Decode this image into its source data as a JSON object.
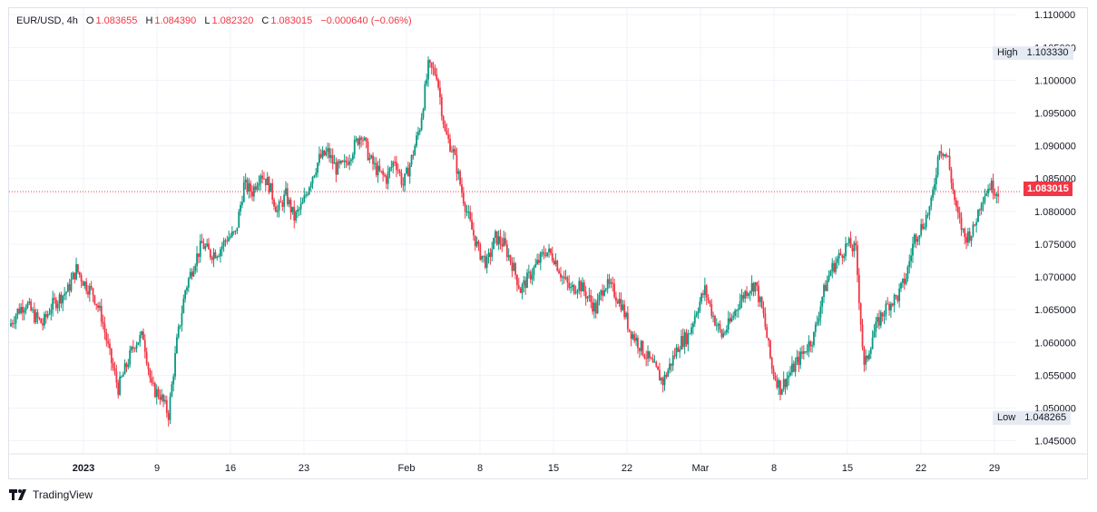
{
  "legend": {
    "symbol": "EUR/USD, 4h",
    "o_label": "O",
    "o": "1.083655",
    "h_label": "H",
    "h": "1.084390",
    "l_label": "L",
    "l": "1.082320",
    "c_label": "C",
    "c": "1.083015",
    "change": "−0.000640 (−0.06%)"
  },
  "high_tag": {
    "label": "High",
    "value": "1.103330"
  },
  "low_tag": {
    "label": "Low",
    "value": "1.048265"
  },
  "last_price": "1.083015",
  "brand": "TradingView",
  "colors": {
    "up": "#089981",
    "down": "#f23645",
    "grid": "#f0f3fa",
    "price_line": "#f23645"
  },
  "chart_data": {
    "type": "candlestick",
    "title": "EUR/USD, 4h",
    "ylim": [
      1.043,
      1.111
    ],
    "y_ticks": [
      "1.045000",
      "1.050000",
      "1.055000",
      "1.060000",
      "1.065000",
      "1.070000",
      "1.075000",
      "1.080000",
      "1.085000",
      "1.090000",
      "1.095000",
      "1.100000",
      "1.105000",
      "1.110000"
    ],
    "x_ticks": [
      "2023",
      "9",
      "16",
      "23",
      "Feb",
      "8",
      "15",
      "22",
      "Mar",
      "8",
      "15",
      "22",
      "29"
    ],
    "grid": true,
    "last_price": 1.083015,
    "series_close": [
      1.0625,
      1.0648,
      1.066,
      1.064,
      1.0628,
      1.0655,
      1.0668,
      1.068,
      1.0712,
      1.069,
      1.0675,
      1.064,
      1.058,
      1.053,
      1.0565,
      1.06,
      1.061,
      1.053,
      1.052,
      1.049,
      1.06,
      1.068,
      1.072,
      1.075,
      1.0735,
      1.074,
      1.076,
      1.0765,
      1.084,
      1.083,
      1.086,
      1.084,
      1.08,
      1.0825,
      1.079,
      1.081,
      1.085,
      1.088,
      1.089,
      1.0865,
      1.087,
      1.0895,
      1.092,
      1.088,
      1.086,
      1.085,
      1.088,
      1.084,
      1.088,
      1.093,
      1.102,
      1.101,
      1.092,
      1.089,
      1.083,
      1.078,
      1.074,
      1.072,
      1.076,
      1.075,
      1.072,
      1.068,
      1.07,
      1.072,
      1.074,
      1.073,
      1.07,
      1.068,
      1.069,
      1.067,
      1.065,
      1.069,
      1.068,
      1.066,
      1.062,
      1.06,
      1.058,
      1.056,
      1.054,
      1.057,
      1.06,
      1.061,
      1.065,
      1.068,
      1.064,
      1.061,
      1.063,
      1.066,
      1.068,
      1.069,
      1.064,
      1.056,
      1.053,
      1.055,
      1.057,
      1.059,
      1.061,
      1.067,
      1.071,
      1.073,
      1.075,
      1.074,
      1.056,
      1.061,
      1.064,
      1.066,
      1.067,
      1.07,
      1.076,
      1.078,
      1.081,
      1.09,
      1.088,
      1.08,
      1.076,
      1.077,
      1.082,
      1.084,
      1.083
    ]
  }
}
